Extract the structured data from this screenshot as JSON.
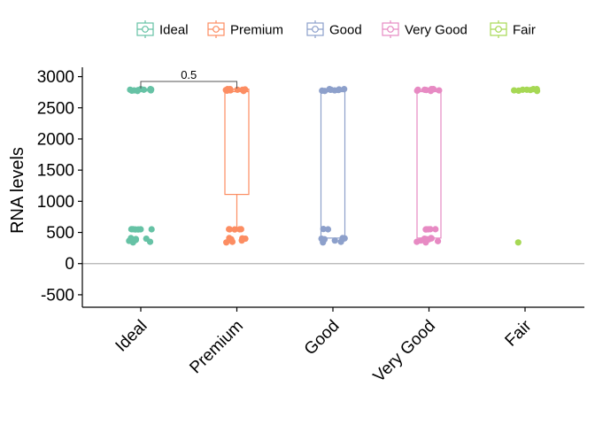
{
  "chart_data": {
    "type": "box",
    "ylabel": "RNA levels",
    "xlabel": "",
    "ylim": [
      -700,
      3150
    ],
    "yticks": [
      -500,
      0,
      500,
      1000,
      1500,
      2000,
      2500,
      3000
    ],
    "reference_line_y": 0,
    "legend_position": "top",
    "categories": [
      "Ideal",
      "Premium",
      "Good",
      "Very Good",
      "Fair"
    ],
    "colors": {
      "Ideal": "#66C2A5",
      "Premium": "#FC8D62",
      "Good": "#8DA0CB",
      "Very Good": "#E78AC3",
      "Fair": "#A6D854"
    },
    "series": [
      {
        "name": "Ideal",
        "box": {
          "q1": 2770,
          "median": 2790,
          "q3": 2800,
          "whisker_low": 2760,
          "whisker_high": 2800
        },
        "points": [
          2800,
          2795,
          2790,
          2785,
          2780,
          2775,
          2770,
          2800,
          2790,
          2780,
          552,
          550,
          548,
          552,
          550,
          548,
          410,
          400,
          395,
          380,
          365,
          350,
          340
        ]
      },
      {
        "name": "Premium",
        "box": {
          "q1": 1110,
          "median": 2760,
          "q3": 2800,
          "whisker_low": 550,
          "whisker_high": 2800
        },
        "points": [
          2800,
          2795,
          2790,
          2785,
          2780,
          2775,
          2770,
          2800,
          2790,
          552,
          550,
          548,
          552,
          550,
          410,
          405,
          400,
          390,
          370,
          350,
          340
        ]
      },
      {
        "name": "Good",
        "box": {
          "q1": 410,
          "median": 2760,
          "q3": 2780,
          "whisker_low": 400,
          "whisker_high": 2800
        },
        "points": [
          2800,
          2795,
          2790,
          2785,
          2780,
          2775,
          2770,
          2800,
          2790,
          555,
          550,
          410,
          405,
          400,
          395,
          390,
          370,
          350,
          340
        ]
      },
      {
        "name": "Very Good",
        "box": {
          "q1": 410,
          "median": 2760,
          "q3": 2780,
          "whisker_low": 400,
          "whisker_high": 2800
        },
        "points": [
          2800,
          2795,
          2790,
          2785,
          2780,
          2775,
          2770,
          2800,
          2790,
          552,
          550,
          548,
          552,
          550,
          410,
          405,
          400,
          395,
          390,
          380,
          370,
          360,
          350,
          340
        ]
      },
      {
        "name": "Fair",
        "box": null,
        "points": [
          2800,
          2790,
          2785,
          2780,
          2775,
          2770,
          2800,
          2790,
          340
        ]
      }
    ],
    "comparisons": [
      {
        "group1": "Ideal",
        "group2": "Premium",
        "label": "0.5"
      }
    ]
  }
}
